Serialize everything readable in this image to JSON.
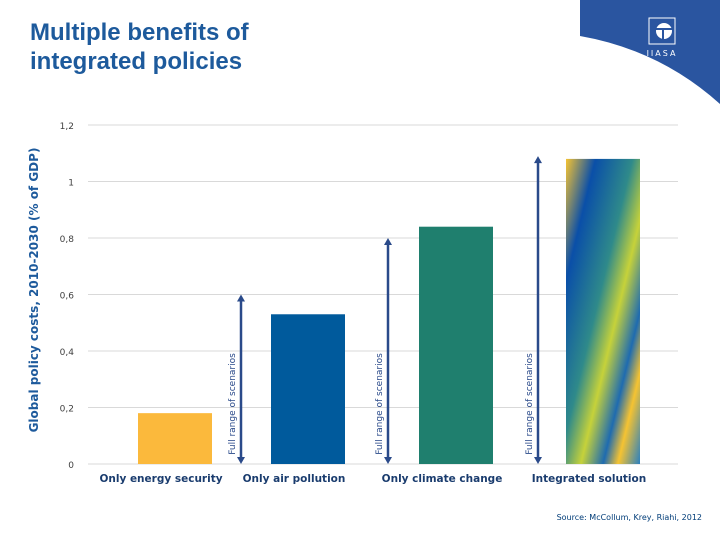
{
  "title": "Multiple benefits of\nintegrated policies",
  "logo": "IIASA",
  "source": "Source: McCollum, Krey, Riahi, 2012",
  "colors": {
    "header_blue": "#2a55a0",
    "title": "#1d5a9c",
    "label": "#1a3c6e",
    "arrow": "#2a4a8a"
  },
  "chart_data": {
    "type": "bar",
    "ylabel": "Global policy costs, 2010-2030 (% of GDP)",
    "ylim": [
      0,
      1.2
    ],
    "yticks": [
      "0",
      "0,2",
      "0,4",
      "0,6",
      "0,8",
      "1",
      "1,2"
    ],
    "grid": true,
    "categories": [
      "Only energy security",
      "Only air pollution",
      "Only climate change",
      "Integrated solution"
    ],
    "values": [
      0.18,
      0.53,
      0.84,
      1.08
    ],
    "bar_colors": [
      "#fbb93c",
      "#005a9c",
      "#1f7f6e",
      "gradient"
    ],
    "range_annotations": [
      {
        "label": "Full range of scenarios",
        "range": [
          0,
          0.6
        ]
      },
      {
        "label": "Full range of scenarios",
        "range": [
          0,
          0.8
        ]
      },
      {
        "label": "Full range of scenarios",
        "range": [
          0,
          1.09
        ]
      }
    ]
  }
}
